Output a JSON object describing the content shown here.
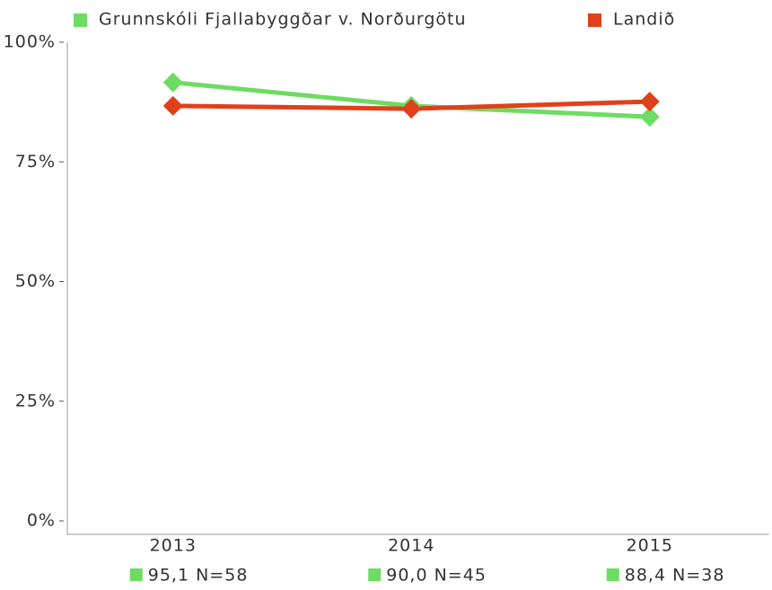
{
  "chart_data": {
    "type": "line",
    "categories": [
      "2013",
      "2014",
      "2015"
    ],
    "series": [
      {
        "name": "Grunnskóli Fjallabyggðar v. Norðurgötu",
        "color": "#6ddc62",
        "values": [
          91.6,
          86.7,
          84.4
        ]
      },
      {
        "name": "Landið",
        "color": "#e0401a",
        "values": [
          86.7,
          86.1,
          87.6
        ]
      }
    ],
    "annotations": [
      "95,1 N=58",
      "90,0 N=45",
      "88,4 N=38"
    ],
    "ylim": [
      0,
      100
    ],
    "yticks": [
      {
        "value": 0,
        "label": "0%"
      },
      {
        "value": 25,
        "label": "25%"
      },
      {
        "value": 50,
        "label": "50%"
      },
      {
        "value": 75,
        "label": "75%"
      },
      {
        "value": 100,
        "label": "100%"
      }
    ],
    "grid": false,
    "legend": "top"
  }
}
